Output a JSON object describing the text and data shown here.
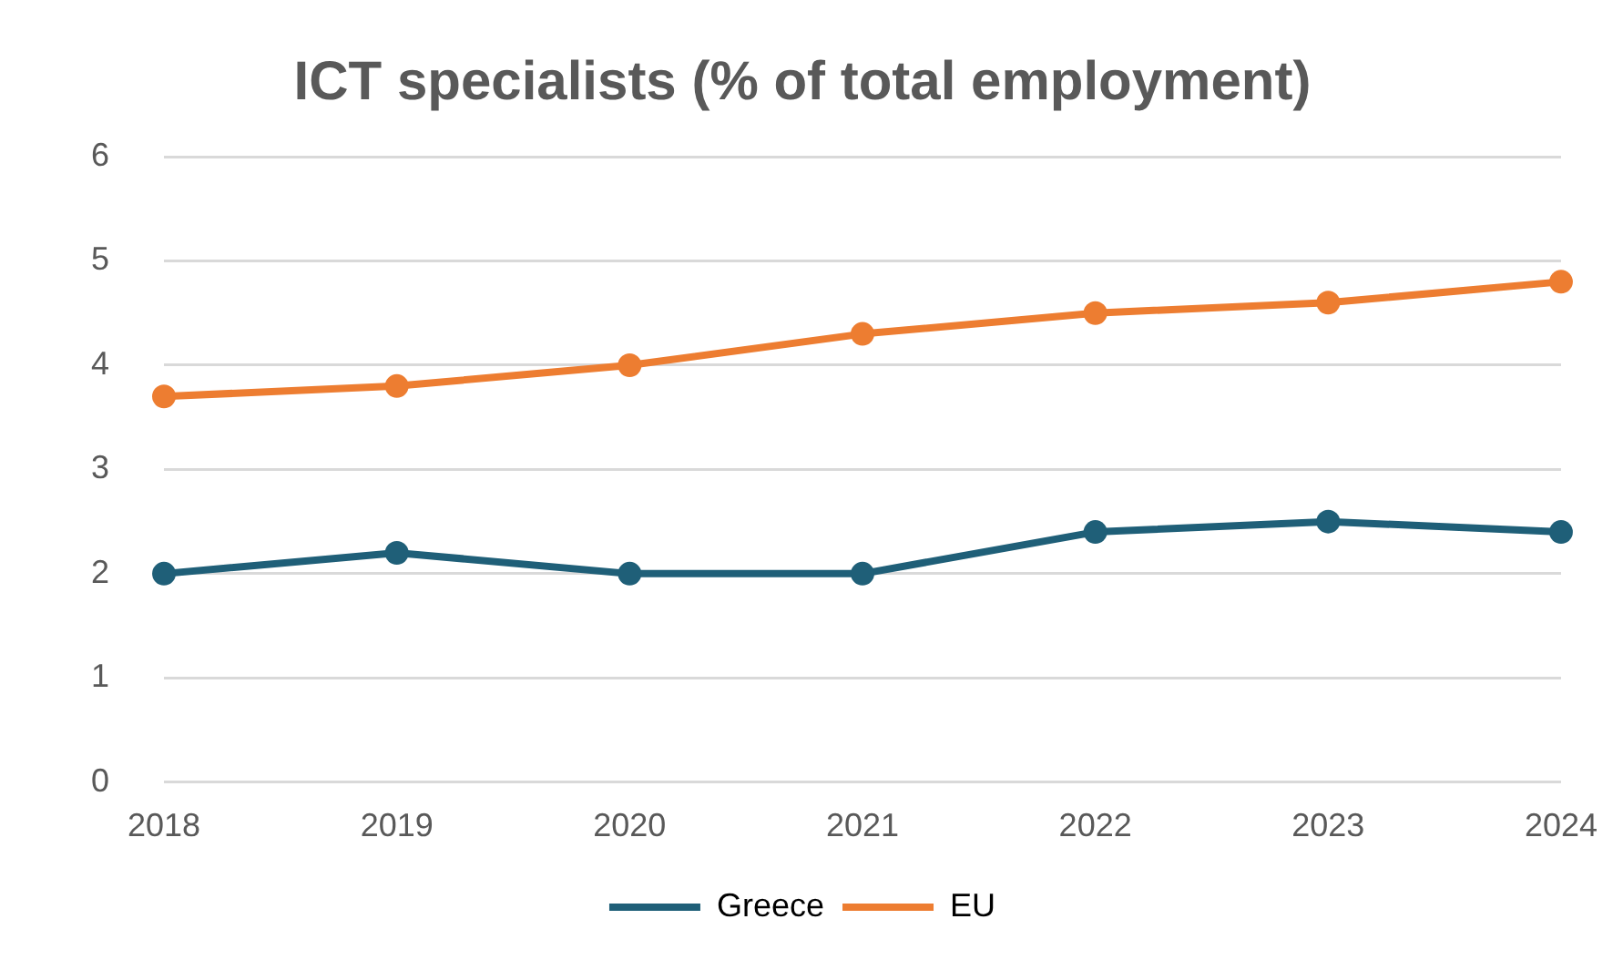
{
  "chart_data": {
    "type": "line",
    "title": "ICT specialists (% of total employment)",
    "categories": [
      "2018",
      "2019",
      "2020",
      "2021",
      "2022",
      "2023",
      "2024"
    ],
    "series": [
      {
        "name": "Greece",
        "color": "#1f5f78",
        "values": [
          2.0,
          2.2,
          2.0,
          2.0,
          2.4,
          2.5,
          2.4
        ]
      },
      {
        "name": "EU",
        "color": "#ed7d31",
        "values": [
          3.7,
          3.8,
          4.0,
          4.3,
          4.5,
          4.6,
          4.8
        ]
      }
    ],
    "ylim": [
      0,
      6
    ],
    "yticks": [
      0,
      1,
      2,
      3,
      4,
      5,
      6
    ],
    "grid": "y",
    "legend": "bottom",
    "marker": "circle",
    "line_style": "solid"
  }
}
